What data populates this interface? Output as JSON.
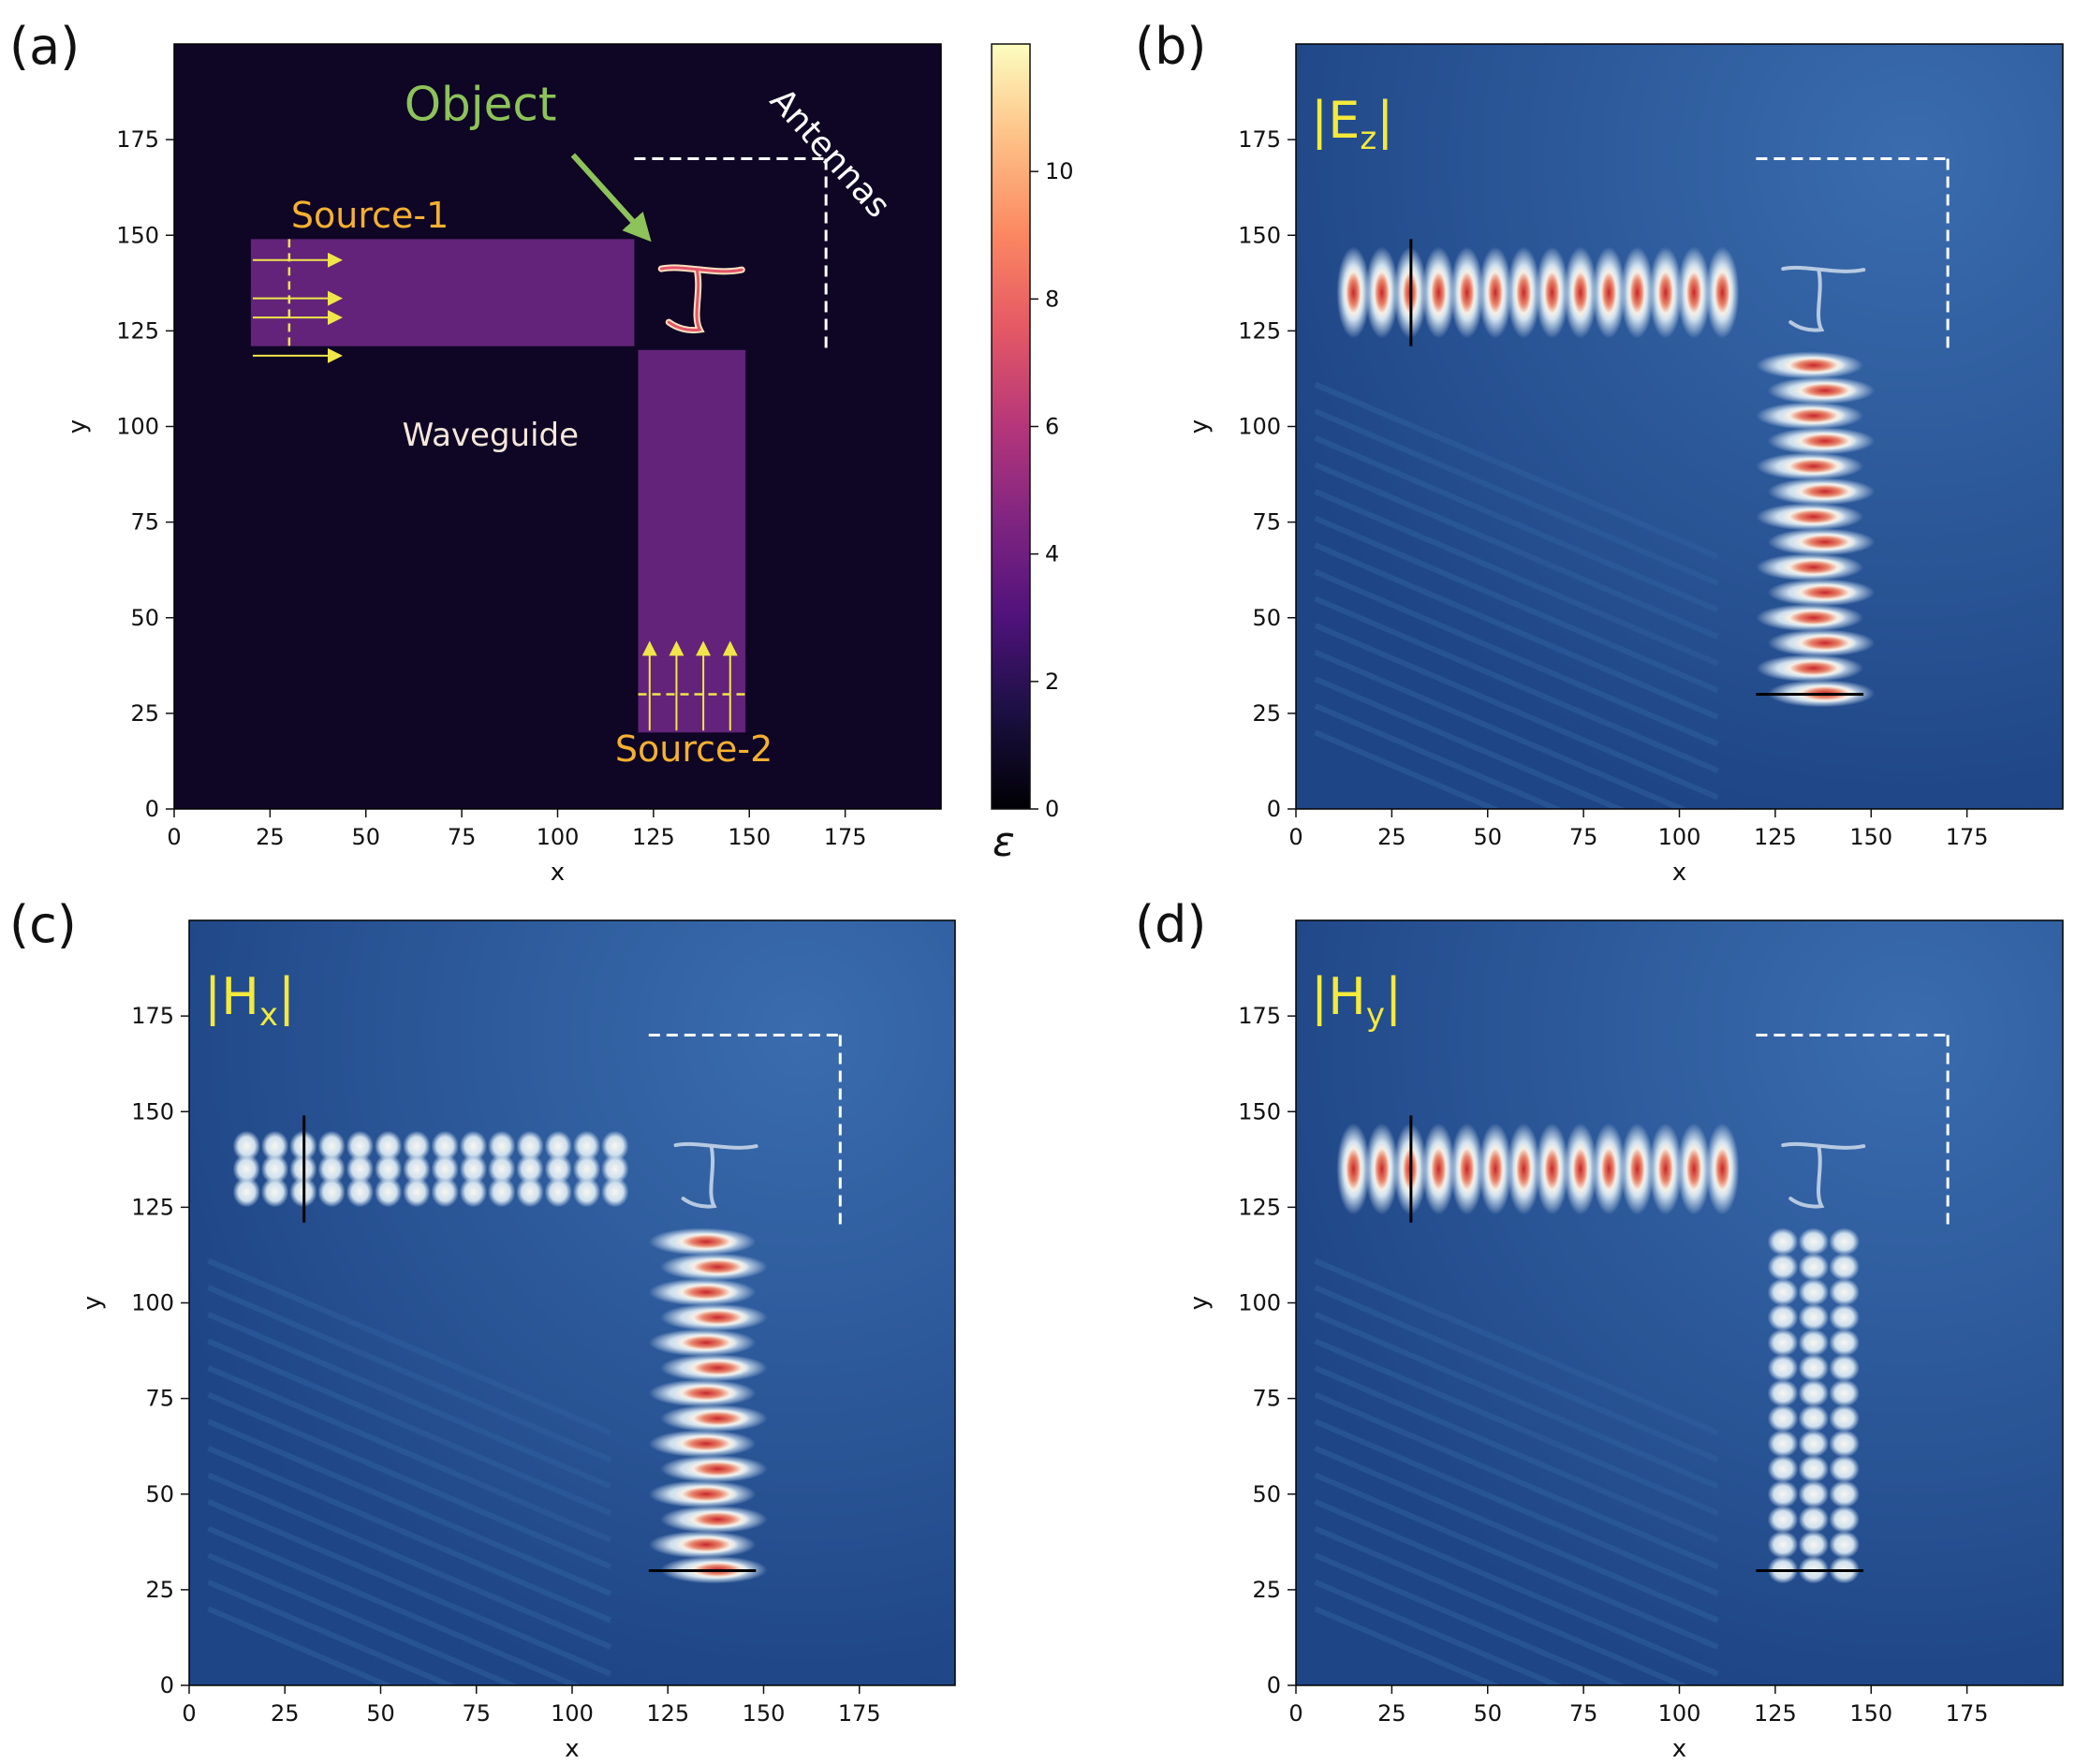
{
  "figure": {
    "panels": [
      "(a)",
      "(b)",
      "(c)",
      "(d)"
    ],
    "field_labels": {
      "b": "|E",
      "b_sub": "z",
      "c": "|H",
      "c_sub": "x",
      "d": "|H",
      "d_sub": "y",
      "bar": "|"
    }
  },
  "colors": {
    "background_a": "#0e0624",
    "structure": "#63237a",
    "source": "#f0e64a",
    "source_text": "#f5b030",
    "object_text": "#8ec25a",
    "field_bg": "#23508f",
    "field_hot": "#c8262a",
    "field_white": "#f5f3ee",
    "field_label": "#f4ea3c"
  },
  "chart_data": [
    {
      "type": "heatmap",
      "panel": "(a)",
      "title": "",
      "xlabel": "x",
      "ylabel": "y",
      "xlim": [
        0,
        200
      ],
      "ylim": [
        0,
        200
      ],
      "xticks": [
        0,
        25,
        50,
        75,
        100,
        125,
        150,
        175
      ],
      "yticks": [
        0,
        25,
        50,
        75,
        100,
        125,
        150,
        175
      ],
      "colorbar": {
        "label": "ε",
        "range": [
          0,
          12
        ],
        "ticks": [
          0,
          2,
          4,
          6,
          8,
          10
        ]
      },
      "structures": [
        {
          "name": "horizontal waveguide",
          "x": [
            20,
            120
          ],
          "y": [
            121,
            149
          ],
          "epsilon": 4
        },
        {
          "name": "vertical waveguide",
          "x": [
            121,
            149
          ],
          "y": [
            20,
            120
          ],
          "epsilon": 4
        }
      ],
      "sources": [
        {
          "label": "Source-1",
          "x": 30,
          "y": [
            121,
            149
          ],
          "direction": "+x"
        },
        {
          "label": "Source-2",
          "y": 30,
          "x": [
            121,
            149
          ],
          "direction": "+y"
        }
      ],
      "antennas": {
        "label": "Antennas",
        "horizontal": {
          "x": [
            120,
            170
          ],
          "y": 170
        },
        "vertical": {
          "x": 170,
          "y": [
            120,
            170
          ]
        }
      },
      "annotations": {
        "object": "Object",
        "waveguide": "Waveguide",
        "antennas": "Antennas",
        "source1": "Source-1",
        "source2": "Source-2"
      }
    },
    {
      "type": "heatmap",
      "panel": "(b)",
      "field": "|Ez|",
      "xlabel": "x",
      "ylabel": "y",
      "xlim": [
        0,
        200
      ],
      "ylim": [
        0,
        200
      ],
      "xticks": [
        0,
        25,
        50,
        75,
        100,
        125,
        150,
        175
      ],
      "yticks": [
        0,
        25,
        50,
        75,
        100,
        125,
        150,
        175
      ],
      "monitor_lines": [
        {
          "x": 30,
          "y": [
            121,
            149
          ]
        },
        {
          "y": 30,
          "x": [
            120,
            148
          ]
        }
      ]
    },
    {
      "type": "heatmap",
      "panel": "(c)",
      "field": "|Hx|",
      "xlabel": "x",
      "ylabel": "y",
      "xlim": [
        0,
        200
      ],
      "ylim": [
        0,
        200
      ],
      "xticks": [
        0,
        25,
        50,
        75,
        100,
        125,
        150,
        175
      ],
      "yticks": [
        0,
        25,
        50,
        75,
        100,
        125,
        150,
        175
      ],
      "monitor_lines": [
        {
          "x": 30,
          "y": [
            121,
            149
          ]
        },
        {
          "y": 30,
          "x": [
            120,
            148
          ]
        }
      ]
    },
    {
      "type": "heatmap",
      "panel": "(d)",
      "field": "|Hy|",
      "xlabel": "x",
      "ylabel": "y",
      "xlim": [
        0,
        200
      ],
      "ylim": [
        0,
        200
      ],
      "xticks": [
        0,
        25,
        50,
        75,
        100,
        125,
        150,
        175
      ],
      "yticks": [
        0,
        25,
        50,
        75,
        100,
        125,
        150,
        175
      ],
      "monitor_lines": [
        {
          "x": 30,
          "y": [
            121,
            149
          ]
        },
        {
          "y": 30,
          "x": [
            120,
            148
          ]
        }
      ]
    }
  ]
}
